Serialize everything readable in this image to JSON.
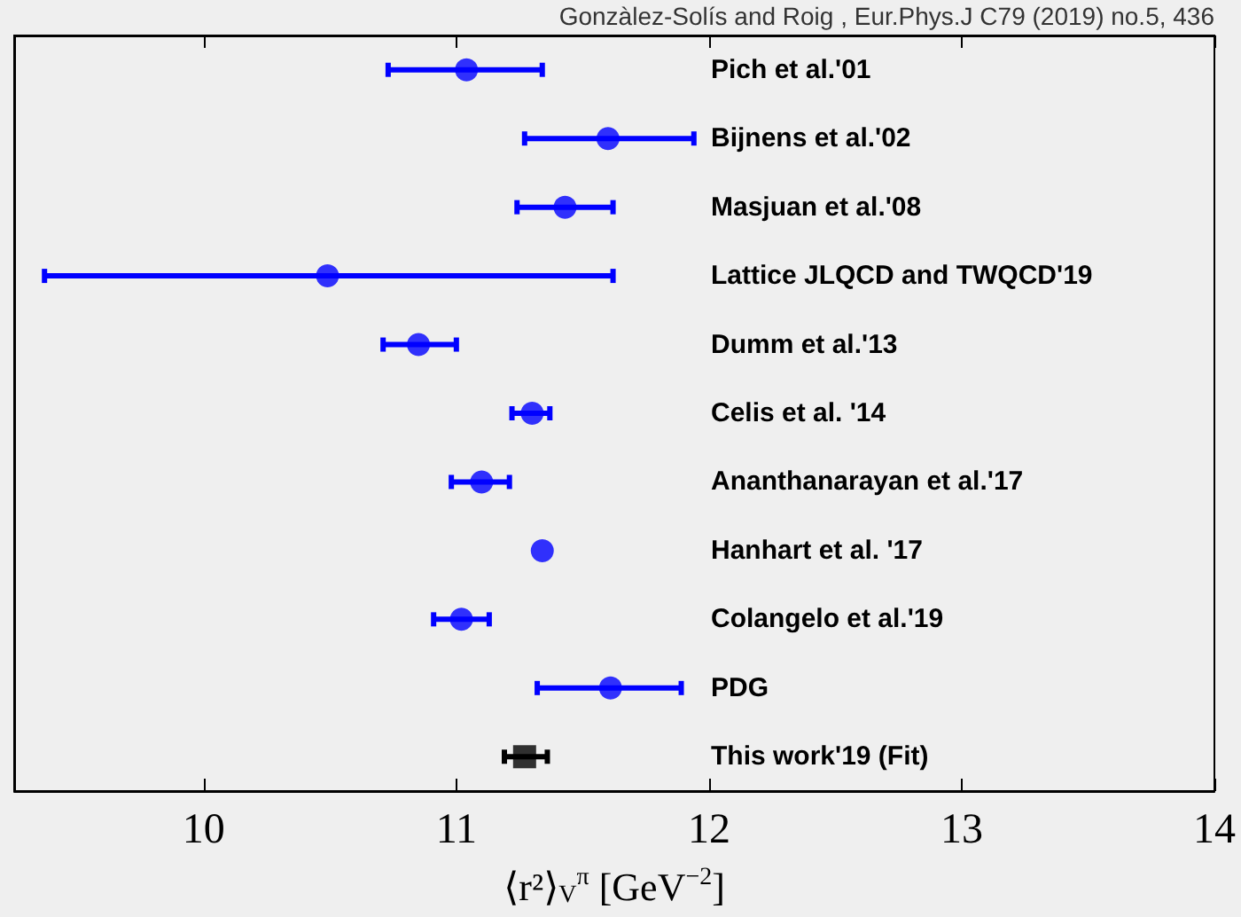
{
  "chart_data": {
    "type": "scatter",
    "orientation": "horizontal",
    "categories": [
      "Pich et al.'01",
      "Bijnens et al.'02",
      "Masjuan et al.'08",
      "Lattice JLQCD and TWQCD'19",
      "Dumm et al.'13",
      "Celis et al. '14",
      "Ananthanarayan et al.'17",
      "Hanhart et al. '17",
      "Colangelo et al.'19",
      "PDG",
      "This work'19 (Fit)"
    ],
    "series": [
      {
        "color": "#0000ff",
        "marker": "circle",
        "values": [
          11.04,
          11.6,
          11.43,
          10.49,
          10.85,
          11.3,
          11.1,
          11.34,
          11.02,
          11.61,
          null
        ],
        "errors": [
          [
            10.73,
            11.34
          ],
          [
            11.27,
            11.94
          ],
          [
            11.24,
            11.62
          ],
          [
            9.37,
            11.62
          ],
          [
            10.71,
            11.0
          ],
          [
            11.22,
            11.37
          ],
          [
            10.98,
            11.21
          ],
          null,
          [
            10.91,
            11.13
          ],
          [
            11.32,
            11.89
          ],
          null
        ]
      },
      {
        "color": "#000000",
        "marker": "square",
        "values": [
          null,
          null,
          null,
          null,
          null,
          null,
          null,
          null,
          null,
          null,
          11.27
        ],
        "errors": [
          null,
          null,
          null,
          null,
          null,
          null,
          null,
          null,
          null,
          null,
          [
            11.19,
            11.36
          ]
        ]
      }
    ],
    "xlim": [
      9.25,
      14
    ],
    "xticks": [
      10,
      11,
      12,
      13,
      14
    ],
    "xlabel": "⟨r²⟩$_{V}$$^{π}$ [GeV$^{−2}$]",
    "annotations": [
      "Gonzàlez-Solís and Roig , Eur.Phys.J C79 (2019) no.5, 436"
    ]
  }
}
